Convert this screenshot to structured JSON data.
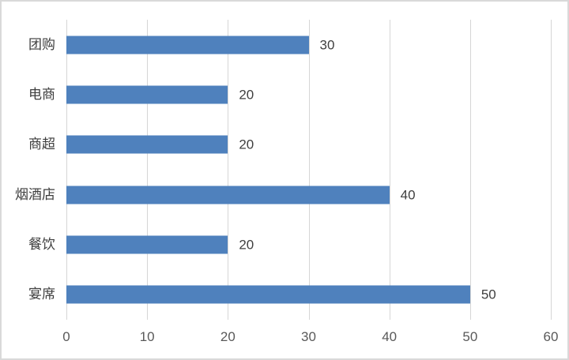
{
  "chart_data": {
    "type": "bar",
    "orientation": "horizontal",
    "title": "",
    "xlabel": "",
    "ylabel": "",
    "categories": [
      "团购",
      "电商",
      "商超",
      "烟酒店",
      "餐饮",
      "宴席"
    ],
    "values": [
      30,
      20,
      20,
      40,
      20,
      50
    ],
    "data_labels": [
      "30",
      "20",
      "20",
      "40",
      "20",
      "50"
    ],
    "xticks": [
      0,
      10,
      20,
      30,
      40,
      50,
      60
    ],
    "xlim": [
      0,
      60
    ],
    "grid": "vertical-only",
    "legend": "none",
    "colors": {
      "bar": "#4F81BD",
      "gridline": "#d6d6d6",
      "frame_border": "#d9d9d9",
      "category_label": "#3d3d3d",
      "value_label": "#3f3f3f",
      "axis_tick_label": "#595959",
      "background": "#ffffff"
    }
  }
}
